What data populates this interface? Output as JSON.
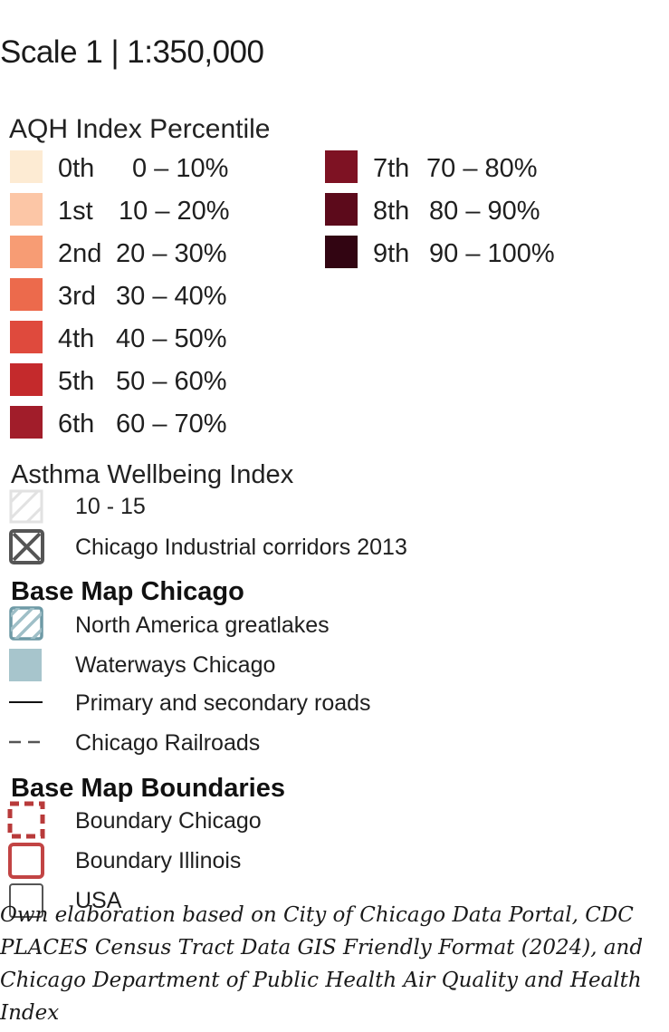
{
  "scale": {
    "title": "Scale 1 | 1:350,000"
  },
  "aqh": {
    "heading": "AQH Index Percentile",
    "items": [
      {
        "rank": "0th",
        "range": "0 – 10%",
        "color": "#fdebd3"
      },
      {
        "rank": "1st",
        "range": "10 – 20%",
        "color": "#fcc6a6"
      },
      {
        "rank": "2nd",
        "range": "20 – 30%",
        "color": "#f79c74"
      },
      {
        "rank": "3rd",
        "range": "30 – 40%",
        "color": "#ec6a4c"
      },
      {
        "rank": "4th",
        "range": "40 – 50%",
        "color": "#df4a3d"
      },
      {
        "rank": "5th",
        "range": "50 – 60%",
        "color": "#c42a2c"
      },
      {
        "rank": "6th",
        "range": "60 – 70%",
        "color": "#a11d2a"
      },
      {
        "rank": "7th",
        "range": "70 – 80%",
        "color": "#7e1223"
      },
      {
        "rank": "8th",
        "range": "80 – 90%",
        "color": "#5c0a1b"
      },
      {
        "rank": "9th",
        "range": "90 – 100%",
        "color": "#320512"
      }
    ]
  },
  "asthma": {
    "heading": "Asthma  Wellbeing Index",
    "items": [
      {
        "label": "10 - 15",
        "symbol": "light-hatched-square-icon"
      },
      {
        "label": "Chicago Industrial corridors 2013",
        "symbol": "crossed-square-icon"
      }
    ]
  },
  "base_map": {
    "heading": "Base Map Chicago",
    "items": [
      {
        "label": "North America greatlakes",
        "symbol": "blue-hatched-square-icon",
        "color": "#6e9aa6"
      },
      {
        "label": "Waterways Chicago",
        "symbol": "blue-square-icon",
        "color": "#a7c5cc"
      },
      {
        "label": "Primary and secondary roads",
        "symbol": "solid-line-icon",
        "color": "#111111"
      },
      {
        "label": "Chicago Railroads",
        "symbol": "dashed-line-icon",
        "color": "#555555"
      }
    ]
  },
  "boundaries": {
    "heading": "Base Map Boundaries",
    "items": [
      {
        "label": "Boundary Chicago",
        "symbol": "red-dashed-square-icon",
        "color": "#b83a3a"
      },
      {
        "label": "Boundary Illinois",
        "symbol": "red-square-outline-icon",
        "color": "#c24444"
      },
      {
        "label": "USA",
        "symbol": "gray-square-outline-icon",
        "color": "#555555"
      }
    ]
  },
  "source_note": "Own elaboration based on City of Chicago Data Portal, CDC PLACES Census Tract Data GIS Friendly Format (2024), and Chicago Department of Public Health Air Quality and Health Index"
}
